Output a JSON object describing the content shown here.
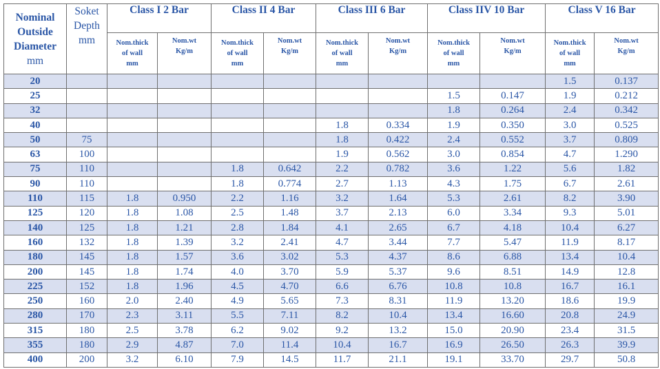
{
  "headers": {
    "nominal": [
      "Nominal",
      "Outside",
      "Diameter",
      "mm"
    ],
    "socket": [
      "Soket",
      "Depth",
      "mm"
    ],
    "classes": [
      "Class  I  2 Bar",
      "Class  II  4 Bar",
      "Class  III  6 Bar",
      "Class  IIV  10 Bar",
      "Class  V  16 Bar"
    ],
    "thick": [
      "Nom.thick",
      "of wall",
      "mm"
    ],
    "weight": [
      "Nom.wt",
      "Kg/m"
    ]
  },
  "rows": [
    [
      "20",
      "",
      "",
      "",
      "",
      "",
      "",
      "",
      "",
      "",
      "1.5",
      "0.137"
    ],
    [
      "25",
      "",
      "",
      "",
      "",
      "",
      "",
      "",
      "1.5",
      "0.147",
      "1.9",
      "0.212"
    ],
    [
      "32",
      "",
      "",
      "",
      "",
      "",
      "",
      "",
      "1.8",
      "0.264",
      "2.4",
      "0.342"
    ],
    [
      "40",
      "",
      "",
      "",
      "",
      "",
      "1.8",
      "0.334",
      "1.9",
      "0.350",
      "3.0",
      "0.525"
    ],
    [
      "50",
      "75",
      "",
      "",
      "",
      "",
      "1.8",
      "0.422",
      "2.4",
      "0.552",
      "3.7",
      "0.809"
    ],
    [
      "63",
      "100",
      "",
      "",
      "",
      "",
      "1.9",
      "0.562",
      "3.0",
      "0.854",
      "4.7",
      "1.290"
    ],
    [
      "75",
      "110",
      "",
      "",
      "1.8",
      "0.642",
      "2.2",
      "0.782",
      "3.6",
      "1.22",
      "5.6",
      "1.82"
    ],
    [
      "90",
      "110",
      "",
      "",
      "1.8",
      "0.774",
      "2.7",
      "1.13",
      "4.3",
      "1.75",
      "6.7",
      "2.61"
    ],
    [
      "110",
      "115",
      "1.8",
      "0.950",
      "2.2",
      "1.16",
      "3.2",
      "1.64",
      "5.3",
      "2.61",
      "8.2",
      "3.90"
    ],
    [
      "125",
      "120",
      "1.8",
      "1.08",
      "2.5",
      "1.48",
      "3.7",
      "2.13",
      "6.0",
      "3.34",
      "9.3",
      "5.01"
    ],
    [
      "140",
      "125",
      "1.8",
      "1.21",
      "2.8",
      "1.84",
      "4.1",
      "2.65",
      "6.7",
      "4.18",
      "10.4",
      "6.27"
    ],
    [
      "160",
      "132",
      "1.8",
      "1.39",
      "3.2",
      "2.41",
      "4.7",
      "3.44",
      "7.7",
      "5.47",
      "11.9",
      "8.17"
    ],
    [
      "180",
      "145",
      "1.8",
      "1.57",
      "3.6",
      "3.02",
      "5.3",
      "4.37",
      "8.6",
      "6.88",
      "13.4",
      "10.4"
    ],
    [
      "200",
      "145",
      "1.8",
      "1.74",
      "4.0",
      "3.70",
      "5.9",
      "5.37",
      "9.6",
      "8.51",
      "14.9",
      "12.8"
    ],
    [
      "225",
      "152",
      "1.8",
      "1.96",
      "4.5",
      "4.70",
      "6.6",
      "6.76",
      "10.8",
      "10.8",
      "16.7",
      "16.1"
    ],
    [
      "250",
      "160",
      "2.0",
      "2.40",
      "4.9",
      "5.65",
      "7.3",
      "8.31",
      "11.9",
      "13.20",
      "18.6",
      "19.9"
    ],
    [
      "280",
      "170",
      "2.3",
      "3.11",
      "5.5",
      "7.11",
      "8.2",
      "10.4",
      "13.4",
      "16.60",
      "20.8",
      "24.9"
    ],
    [
      "315",
      "180",
      "2.5",
      "3.78",
      "6.2",
      "9.02",
      "9.2",
      "13.2",
      "15.0",
      "20.90",
      "23.4",
      "31.5"
    ],
    [
      "355",
      "180",
      "2.9",
      "4.87",
      "7.0",
      "11.4",
      "10.4",
      "16.7",
      "16.9",
      "26.50",
      "26.3",
      "39.9"
    ],
    [
      "400",
      "200",
      "3.2",
      "6.10",
      "7.9",
      "14.5",
      "11.7",
      "21.1",
      "19.1",
      "33.70",
      "29.7",
      "50.8"
    ]
  ]
}
